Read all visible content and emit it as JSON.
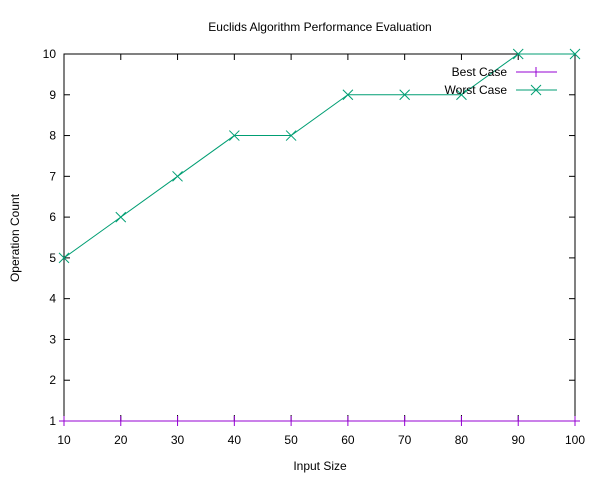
{
  "chart_data": {
    "type": "line",
    "title": "Euclids Algorithm Performance Evaluation",
    "xlabel": "Input Size",
    "ylabel": "Operation Count",
    "xlim": [
      10,
      100
    ],
    "ylim": [
      1,
      10
    ],
    "x_ticks": [
      10,
      20,
      30,
      40,
      50,
      60,
      70,
      80,
      90,
      100
    ],
    "y_ticks": [
      1,
      2,
      3,
      4,
      5,
      6,
      7,
      8,
      9,
      10
    ],
    "grid": false,
    "legend": "top-right",
    "x": [
      10,
      20,
      30,
      40,
      50,
      60,
      70,
      80,
      90,
      100
    ],
    "series": [
      {
        "name": "Best Case",
        "color": "#9400d3",
        "marker": "plus",
        "values": [
          1,
          1,
          1,
          1,
          1,
          1,
          1,
          1,
          1,
          1
        ]
      },
      {
        "name": "Worst Case",
        "color": "#009e73",
        "marker": "cross",
        "values": [
          5,
          6,
          7,
          8,
          8,
          9,
          9,
          9,
          10,
          10
        ]
      }
    ]
  }
}
